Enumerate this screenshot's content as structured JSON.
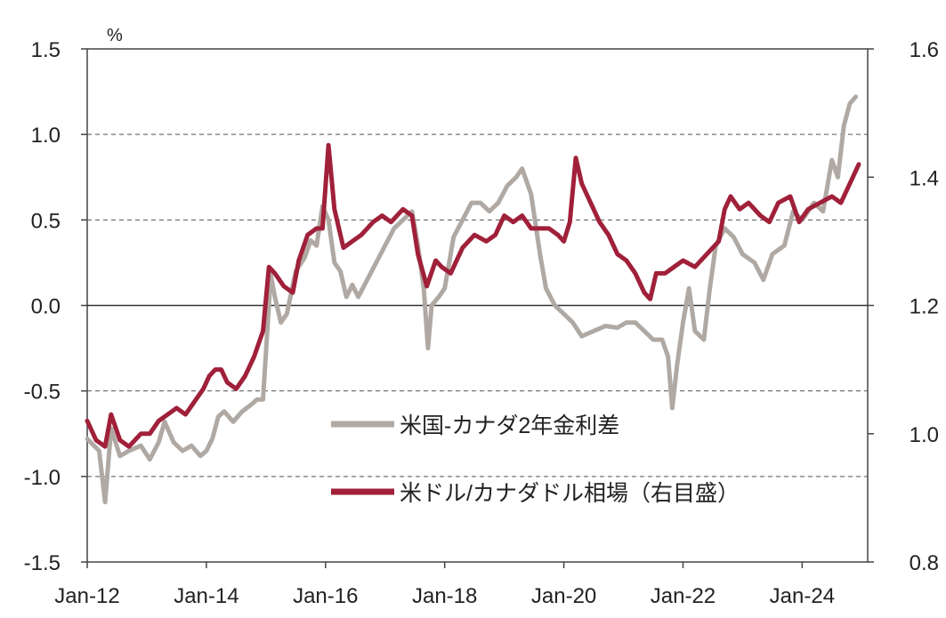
{
  "chart_data": {
    "type": "line",
    "unit_label": "%",
    "x_ticks": [
      "Jan-12",
      "Jan-14",
      "Jan-16",
      "Jan-18",
      "Jan-20",
      "Jan-22",
      "Jan-24"
    ],
    "x_range": [
      2012.0,
      2025.1
    ],
    "y_left": {
      "range": [
        -1.5,
        1.5
      ],
      "ticks": [
        "1.5",
        "1.0",
        "0.5",
        "0.0",
        "-0.5",
        "-1.0",
        "-1.5"
      ]
    },
    "y_right": {
      "range": [
        0.8,
        1.6
      ],
      "ticks": [
        "1.6",
        "1.4",
        "1.2",
        "1.0",
        "0.8"
      ]
    },
    "gridlines": "dashed at each left-axis tick, solid at 0.0",
    "series": [
      {
        "name": "米国-カナダ2年金利差",
        "axis": "left",
        "color": "#b0a9a3",
        "points": [
          [
            2012.0,
            -0.78
          ],
          [
            2012.2,
            -0.85
          ],
          [
            2012.3,
            -1.15
          ],
          [
            2012.4,
            -0.72
          ],
          [
            2012.55,
            -0.88
          ],
          [
            2012.7,
            -0.85
          ],
          [
            2012.9,
            -0.82
          ],
          [
            2013.05,
            -0.9
          ],
          [
            2013.2,
            -0.8
          ],
          [
            2013.3,
            -0.68
          ],
          [
            2013.45,
            -0.8
          ],
          [
            2013.6,
            -0.85
          ],
          [
            2013.75,
            -0.82
          ],
          [
            2013.9,
            -0.88
          ],
          [
            2014.0,
            -0.85
          ],
          [
            2014.1,
            -0.78
          ],
          [
            2014.2,
            -0.65
          ],
          [
            2014.3,
            -0.62
          ],
          [
            2014.45,
            -0.68
          ],
          [
            2014.6,
            -0.62
          ],
          [
            2014.75,
            -0.58
          ],
          [
            2014.85,
            -0.55
          ],
          [
            2014.95,
            -0.55
          ],
          [
            2015.0,
            -0.28
          ],
          [
            2015.08,
            0.18
          ],
          [
            2015.15,
            0.05
          ],
          [
            2015.25,
            -0.1
          ],
          [
            2015.35,
            -0.05
          ],
          [
            2015.5,
            0.2
          ],
          [
            2015.65,
            0.28
          ],
          [
            2015.75,
            0.38
          ],
          [
            2015.85,
            0.35
          ],
          [
            2015.95,
            0.58
          ],
          [
            2016.05,
            0.5
          ],
          [
            2016.15,
            0.25
          ],
          [
            2016.25,
            0.2
          ],
          [
            2016.35,
            0.05
          ],
          [
            2016.45,
            0.12
          ],
          [
            2016.55,
            0.05
          ],
          [
            2016.7,
            0.15
          ],
          [
            2016.85,
            0.25
          ],
          [
            2017.0,
            0.35
          ],
          [
            2017.15,
            0.45
          ],
          [
            2017.3,
            0.5
          ],
          [
            2017.45,
            0.55
          ],
          [
            2017.55,
            0.35
          ],
          [
            2017.65,
            0.1
          ],
          [
            2017.72,
            -0.25
          ],
          [
            2017.78,
            0.0
          ],
          [
            2017.9,
            0.05
          ],
          [
            2018.0,
            0.1
          ],
          [
            2018.15,
            0.4
          ],
          [
            2018.3,
            0.5
          ],
          [
            2018.45,
            0.6
          ],
          [
            2018.6,
            0.6
          ],
          [
            2018.75,
            0.55
          ],
          [
            2018.9,
            0.6
          ],
          [
            2019.05,
            0.7
          ],
          [
            2019.2,
            0.75
          ],
          [
            2019.3,
            0.8
          ],
          [
            2019.45,
            0.65
          ],
          [
            2019.6,
            0.3
          ],
          [
            2019.7,
            0.1
          ],
          [
            2019.85,
            0.0
          ],
          [
            2020.0,
            -0.05
          ],
          [
            2020.15,
            -0.1
          ],
          [
            2020.3,
            -0.18
          ],
          [
            2020.5,
            -0.15
          ],
          [
            2020.7,
            -0.12
          ],
          [
            2020.9,
            -0.13
          ],
          [
            2021.05,
            -0.1
          ],
          [
            2021.2,
            -0.1
          ],
          [
            2021.35,
            -0.15
          ],
          [
            2021.5,
            -0.2
          ],
          [
            2021.65,
            -0.2
          ],
          [
            2021.75,
            -0.3
          ],
          [
            2021.82,
            -0.6
          ],
          [
            2021.9,
            -0.35
          ],
          [
            2022.0,
            -0.1
          ],
          [
            2022.1,
            0.1
          ],
          [
            2022.2,
            -0.15
          ],
          [
            2022.35,
            -0.2
          ],
          [
            2022.45,
            0.1
          ],
          [
            2022.55,
            0.35
          ],
          [
            2022.7,
            0.45
          ],
          [
            2022.85,
            0.4
          ],
          [
            2023.0,
            0.3
          ],
          [
            2023.2,
            0.25
          ],
          [
            2023.35,
            0.15
          ],
          [
            2023.5,
            0.3
          ],
          [
            2023.7,
            0.35
          ],
          [
            2023.85,
            0.55
          ],
          [
            2024.0,
            0.5
          ],
          [
            2024.1,
            0.55
          ],
          [
            2024.2,
            0.6
          ],
          [
            2024.35,
            0.55
          ],
          [
            2024.5,
            0.85
          ],
          [
            2024.6,
            0.75
          ],
          [
            2024.7,
            1.05
          ],
          [
            2024.8,
            1.18
          ],
          [
            2024.9,
            1.22
          ]
        ]
      },
      {
        "name": "米ドル/カナダドル相場（右目盛）",
        "axis": "right",
        "color": "#a0203a",
        "points": [
          [
            2012.0,
            1.02
          ],
          [
            2012.15,
            0.99
          ],
          [
            2012.3,
            0.98
          ],
          [
            2012.4,
            1.03
          ],
          [
            2012.55,
            0.99
          ],
          [
            2012.7,
            0.98
          ],
          [
            2012.9,
            1.0
          ],
          [
            2013.05,
            1.0
          ],
          [
            2013.2,
            1.02
          ],
          [
            2013.35,
            1.03
          ],
          [
            2013.5,
            1.04
          ],
          [
            2013.65,
            1.03
          ],
          [
            2013.8,
            1.05
          ],
          [
            2013.95,
            1.07
          ],
          [
            2014.05,
            1.09
          ],
          [
            2014.15,
            1.1
          ],
          [
            2014.25,
            1.1
          ],
          [
            2014.35,
            1.08
          ],
          [
            2014.5,
            1.07
          ],
          [
            2014.65,
            1.09
          ],
          [
            2014.8,
            1.12
          ],
          [
            2014.95,
            1.16
          ],
          [
            2015.05,
            1.26
          ],
          [
            2015.15,
            1.25
          ],
          [
            2015.3,
            1.23
          ],
          [
            2015.45,
            1.22
          ],
          [
            2015.55,
            1.27
          ],
          [
            2015.7,
            1.31
          ],
          [
            2015.85,
            1.32
          ],
          [
            2015.95,
            1.32
          ],
          [
            2016.05,
            1.45
          ],
          [
            2016.15,
            1.35
          ],
          [
            2016.3,
            1.29
          ],
          [
            2016.45,
            1.3
          ],
          [
            2016.6,
            1.31
          ],
          [
            2016.8,
            1.33
          ],
          [
            2016.95,
            1.34
          ],
          [
            2017.1,
            1.33
          ],
          [
            2017.3,
            1.35
          ],
          [
            2017.45,
            1.34
          ],
          [
            2017.55,
            1.28
          ],
          [
            2017.7,
            1.23
          ],
          [
            2017.85,
            1.27
          ],
          [
            2017.95,
            1.26
          ],
          [
            2018.1,
            1.25
          ],
          [
            2018.3,
            1.29
          ],
          [
            2018.5,
            1.31
          ],
          [
            2018.7,
            1.3
          ],
          [
            2018.85,
            1.31
          ],
          [
            2019.0,
            1.34
          ],
          [
            2019.15,
            1.33
          ],
          [
            2019.3,
            1.34
          ],
          [
            2019.45,
            1.32
          ],
          [
            2019.6,
            1.32
          ],
          [
            2019.75,
            1.32
          ],
          [
            2019.9,
            1.31
          ],
          [
            2020.0,
            1.3
          ],
          [
            2020.1,
            1.33
          ],
          [
            2020.2,
            1.43
          ],
          [
            2020.3,
            1.39
          ],
          [
            2020.45,
            1.36
          ],
          [
            2020.6,
            1.33
          ],
          [
            2020.75,
            1.31
          ],
          [
            2020.9,
            1.28
          ],
          [
            2021.05,
            1.27
          ],
          [
            2021.2,
            1.25
          ],
          [
            2021.35,
            1.22
          ],
          [
            2021.45,
            1.21
          ],
          [
            2021.55,
            1.25
          ],
          [
            2021.7,
            1.25
          ],
          [
            2021.85,
            1.26
          ],
          [
            2022.0,
            1.27
          ],
          [
            2022.2,
            1.26
          ],
          [
            2022.4,
            1.28
          ],
          [
            2022.6,
            1.3
          ],
          [
            2022.7,
            1.35
          ],
          [
            2022.8,
            1.37
          ],
          [
            2022.95,
            1.35
          ],
          [
            2023.1,
            1.36
          ],
          [
            2023.3,
            1.34
          ],
          [
            2023.45,
            1.33
          ],
          [
            2023.6,
            1.36
          ],
          [
            2023.8,
            1.37
          ],
          [
            2023.95,
            1.33
          ],
          [
            2024.1,
            1.35
          ],
          [
            2024.3,
            1.36
          ],
          [
            2024.5,
            1.37
          ],
          [
            2024.65,
            1.36
          ],
          [
            2024.75,
            1.38
          ],
          [
            2024.85,
            1.4
          ],
          [
            2024.95,
            1.42
          ]
        ]
      }
    ],
    "legend": [
      {
        "label": "米国-カナダ2年金利差",
        "color": "#b0a9a3"
      },
      {
        "label": "米ドル/カナダドル相場（右目盛）",
        "color": "#a0203a"
      }
    ]
  }
}
